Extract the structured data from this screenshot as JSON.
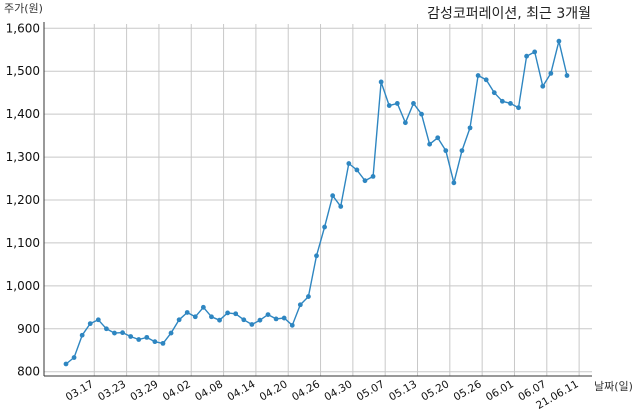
{
  "chart_data": {
    "type": "line",
    "title": "감성코퍼레이션, 최근 3개월",
    "ylabel": "주가(원)",
    "xlabel": "날짜(일)",
    "ylim": [
      790,
      1610
    ],
    "yticks": [
      800,
      900,
      1000,
      1100,
      1200,
      1300,
      1400,
      1500,
      1600
    ],
    "ytick_labels": [
      "800",
      "900",
      "1,000",
      "1,100",
      "1,200",
      "1,300",
      "1,400",
      "1,500",
      "1,600"
    ],
    "xtick_labels": [
      "03.17",
      "03.23",
      "03.29",
      "04.02",
      "04.08",
      "04.14",
      "04.20",
      "04.26",
      "04.30",
      "05.07",
      "05.13",
      "05.20",
      "05.26",
      "06.01",
      "06.07",
      "21.06.11"
    ],
    "xtick_positions": [
      3.5,
      7.5,
      11.5,
      15.5,
      19.5,
      23.5,
      27.5,
      31.5,
      35.5,
      39.5,
      43.5,
      47.5,
      51.5,
      55.5,
      59.5,
      63.5
    ],
    "grid": true,
    "line_color": "#2e86c1",
    "series": [
      {
        "values": [
          818,
          833,
          885,
          912,
          921,
          900,
          890,
          891,
          882,
          875,
          880,
          870,
          866,
          890,
          921,
          938,
          928,
          950,
          928,
          920,
          937,
          935,
          921,
          910,
          920,
          933,
          923,
          925,
          908,
          956,
          975,
          1070,
          1137,
          1210,
          1185,
          1285,
          1270,
          1245,
          1255,
          1475,
          1420,
          1425,
          1380,
          1425,
          1400,
          1330,
          1345,
          1315,
          1240,
          1315,
          1368,
          1490,
          1480,
          1450,
          1430,
          1425,
          1415,
          1535,
          1545,
          1465,
          1495,
          1570,
          1490
        ]
      }
    ]
  }
}
